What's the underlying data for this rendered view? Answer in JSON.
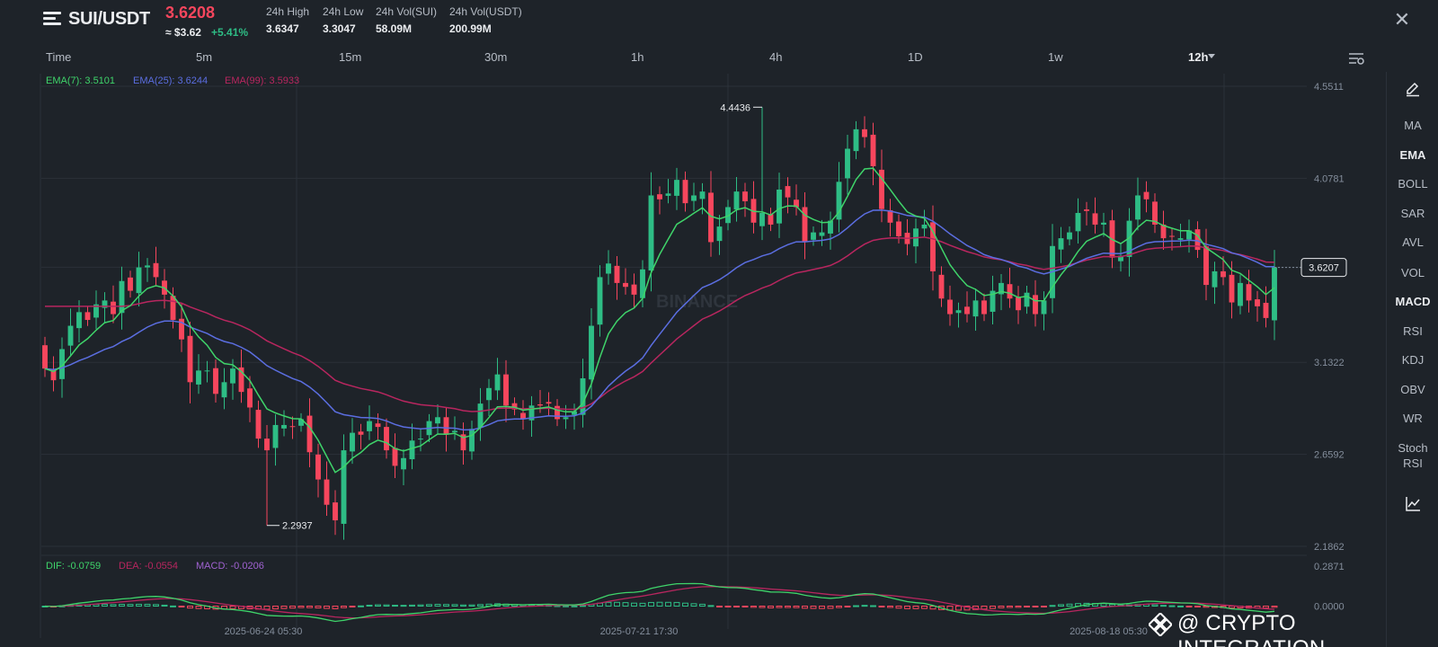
{
  "header": {
    "pair": "SUI/USDT",
    "price": "3.6208",
    "price_usd": "≈ $3.62",
    "change": "+5.41%",
    "stats": [
      {
        "label": "24h High",
        "value": "3.6347"
      },
      {
        "label": "24h Low",
        "value": "3.3047"
      },
      {
        "label": "24h Vol(SUI)",
        "value": "58.09M"
      },
      {
        "label": "24h Vol(USDT)",
        "value": "200.99M"
      }
    ]
  },
  "timeframes": [
    "Time",
    "5m",
    "15m",
    "30m",
    "1h",
    "4h",
    "1D",
    "1w",
    "12h"
  ],
  "active_timeframe": "12h",
  "indicators": [
    "MA",
    "EMA",
    "BOLL",
    "SAR",
    "AVL",
    "VOL",
    "MACD",
    "RSI",
    "KDJ",
    "OBV",
    "WR",
    "Stoch RSI"
  ],
  "active_indicators": [
    "EMA",
    "MACD"
  ],
  "colors": {
    "up": "#2ebd85",
    "down": "#f6465d",
    "ema7": "#3fd46a",
    "ema25": "#5b6ee1",
    "ema99": "#b8265f",
    "dif": "#3fd46a",
    "dea": "#b8265f",
    "macd_label": "#a062d1",
    "background": "#1e2329"
  },
  "watermark": "@ CRYPTO INTEGRATION",
  "chart_data": {
    "type": "candlestick",
    "price_axis": {
      "ticks": [
        "4.5511",
        "4.0781",
        "3.6207",
        "3.1322",
        "2.6592",
        "2.1862"
      ],
      "tick_values": [
        4.5511,
        4.0781,
        3.6207,
        3.1322,
        2.6592,
        2.1862
      ],
      "min": 2.1862,
      "max": 4.5511,
      "current_price_label": "3.6207"
    },
    "x_axis": {
      "labels": [
        "2025-06-24 05:30",
        "2025-07-21 17:30",
        "2025-08-18 05:30"
      ],
      "label_candle_index": [
        26,
        70,
        125
      ]
    },
    "legend": {
      "ema7": "EMA(7): 3.5101",
      "ema25": "EMA(25): 3.6244",
      "ema99": "EMA(99): 3.5933"
    },
    "annotations": {
      "high": {
        "value": 4.4436,
        "label": "4.4436",
        "candle_index": 84
      },
      "low": {
        "value": 2.2937,
        "label": "2.2937",
        "candle_index": 26
      }
    },
    "macd": {
      "legend": {
        "dif": "DIF: -0.0759",
        "dea": "DEA: -0.0554",
        "macd": "MACD: -0.0206"
      },
      "ticks": [
        "0.2871",
        "0.0000"
      ],
      "tick_values": [
        0.2871,
        0.0
      ],
      "min": -0.1,
      "max": 0.2871
    },
    "closes": [
      3.1,
      3.04,
      3.2,
      3.32,
      3.39,
      3.35,
      3.43,
      3.45,
      3.38,
      3.55,
      3.5,
      3.62,
      3.63,
      3.57,
      3.48,
      3.35,
      3.25,
      3.03,
      3.09,
      3.09,
      2.97,
      3.03,
      3.1,
      2.98,
      2.9,
      2.74,
      2.68,
      2.81,
      2.81,
      2.8,
      2.84,
      2.67,
      2.53,
      2.4,
      2.32,
      2.68,
      2.77,
      2.76,
      2.83,
      2.8,
      2.68,
      2.6,
      2.64,
      2.73,
      2.74,
      2.83,
      2.85,
      2.76,
      2.78,
      2.68,
      2.79,
      2.92,
      3.0,
      3.07,
      2.91,
      2.89,
      2.84,
      2.91,
      2.91,
      2.92,
      2.84,
      2.85,
      2.88,
      3.05,
      3.32,
      3.57,
      3.64,
      3.54,
      3.52,
      3.48,
      3.61,
      3.99,
      3.97,
      4.0,
      4.07,
      3.95,
      3.99,
      4.01,
      3.75,
      3.83,
      3.93,
      4.01,
      3.96,
      3.85,
      3.9,
      3.84,
      4.02,
      3.98,
      3.93,
      3.75,
      3.8,
      3.8,
      3.86,
      4.06,
      4.23,
      4.33,
      4.29,
      4.14,
      3.92,
      3.85,
      3.78,
      3.74,
      3.82,
      3.84,
      3.6,
      3.46,
      3.38,
      3.4,
      3.38,
      3.45,
      3.38,
      3.5,
      3.54,
      3.46,
      3.4,
      3.49,
      3.38,
      3.45,
      3.73,
      3.77,
      3.8,
      3.9,
      3.91,
      3.84,
      3.85,
      3.67,
      3.68,
      3.86,
      3.99,
      3.97,
      3.84,
      3.77,
      3.78,
      3.77,
      3.81,
      3.71,
      3.53,
      3.6,
      3.57,
      3.44,
      3.54,
      3.45,
      3.42,
      3.36,
      3.62
    ]
  }
}
